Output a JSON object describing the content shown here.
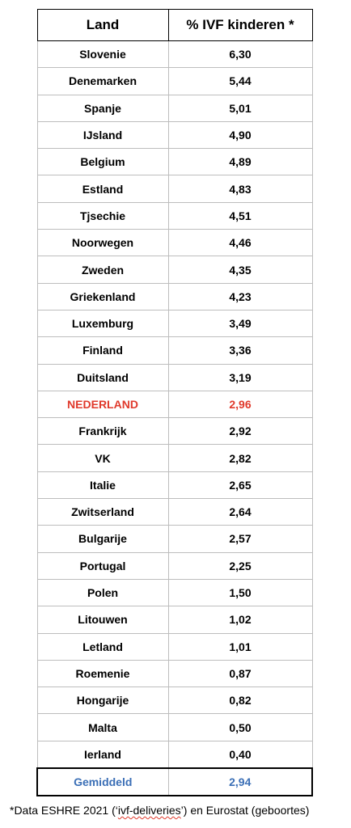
{
  "table": {
    "headers": [
      "Land",
      "% IVF kinderen *"
    ],
    "rows": [
      {
        "land": "Slovenie",
        "pct": "6,30"
      },
      {
        "land": "Denemarken",
        "pct": "5,44"
      },
      {
        "land": "Spanje",
        "pct": "5,01"
      },
      {
        "land": "IJsland",
        "pct": "4,90"
      },
      {
        "land": "Belgium",
        "pct": "4,89"
      },
      {
        "land": "Estland",
        "pct": "4,83"
      },
      {
        "land": "Tjsechie",
        "pct": "4,51"
      },
      {
        "land": "Noorwegen",
        "pct": "4,46"
      },
      {
        "land": "Zweden",
        "pct": "4,35"
      },
      {
        "land": "Griekenland",
        "pct": "4,23"
      },
      {
        "land": "Luxemburg",
        "pct": "3,49"
      },
      {
        "land": "Finland",
        "pct": "3,36"
      },
      {
        "land": "Duitsland",
        "pct": "3,19"
      },
      {
        "land": "NEDERLAND",
        "pct": "2,96"
      },
      {
        "land": "Frankrijk",
        "pct": "2,92"
      },
      {
        "land": "VK",
        "pct": "2,82"
      },
      {
        "land": "Italie",
        "pct": "2,65"
      },
      {
        "land": "Zwitserland",
        "pct": "2,64"
      },
      {
        "land": "Bulgarije",
        "pct": "2,57"
      },
      {
        "land": "Portugal",
        "pct": "2,25"
      },
      {
        "land": "Polen",
        "pct": "1,50"
      },
      {
        "land": "Litouwen",
        "pct": "1,02"
      },
      {
        "land": "Letland",
        "pct": "1,01"
      },
      {
        "land": "Roemenie",
        "pct": "0,87"
      },
      {
        "land": "Hongarije",
        "pct": "0,82"
      },
      {
        "land": "Malta",
        "pct": "0,50"
      },
      {
        "land": "Ierland",
        "pct": "0,40"
      }
    ],
    "average": {
      "land": "Gemiddeld",
      "pct": "2,94"
    }
  },
  "footnote": {
    "before": "*Data ESHRE 2021 (‘",
    "squiggle": "ivf-deliveries",
    "after": "’) en Eurostat (geboortes)"
  },
  "colors": {
    "highlight": "#e03a2c",
    "average": "#3b6fb6"
  }
}
